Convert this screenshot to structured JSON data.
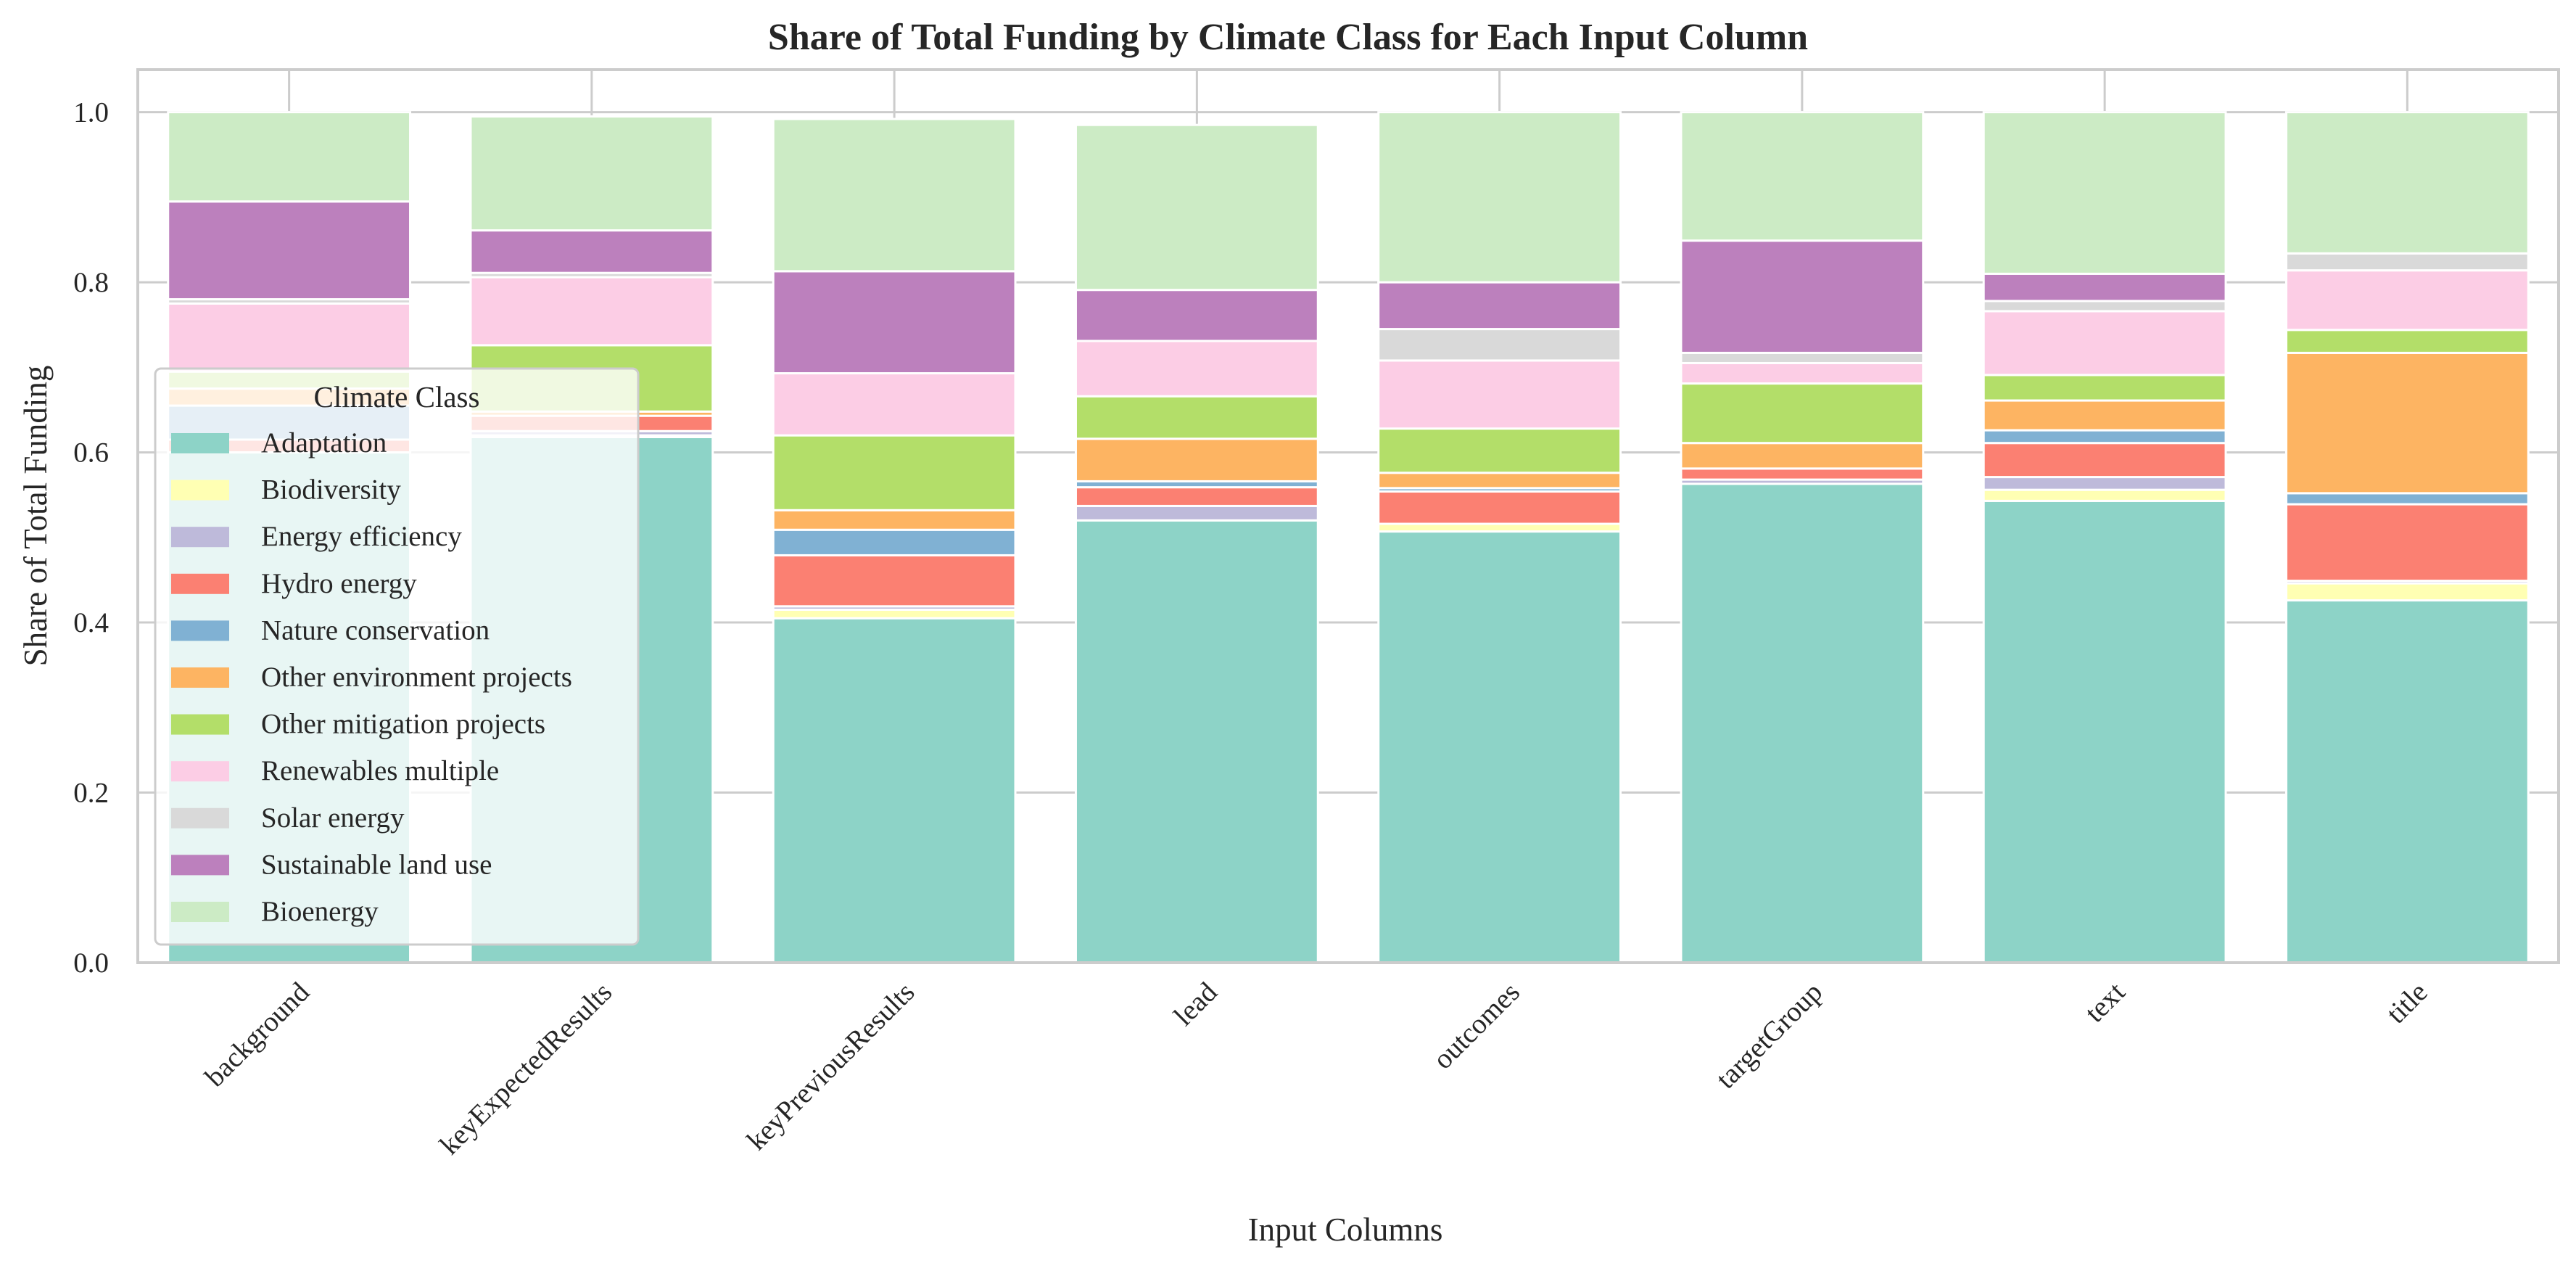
{
  "chart_data": {
    "type": "bar",
    "stacked": true,
    "title": "Share of Total Funding by Climate Class for Each Input Column",
    "xlabel": "Input Columns",
    "ylabel": "Share of Total Funding",
    "ylim": [
      0,
      1.05
    ],
    "yticks": [
      "0.0",
      "0.2",
      "0.4",
      "0.6",
      "0.8",
      "1.0"
    ],
    "ytick_values": [
      0,
      0.2,
      0.4,
      0.6,
      0.8,
      1.0
    ],
    "grid": true,
    "legend_title": "Climate Class",
    "legend_position": "center-left",
    "categories": [
      "background",
      "keyExpectedResults",
      "keyPreviousResults",
      "lead",
      "outcomes",
      "targetGroup",
      "text",
      "title"
    ],
    "series": [
      {
        "name": "Adaptation",
        "color": "#8dd3c7",
        "values": [
          0.6,
          0.618,
          0.405,
          0.52,
          0.507,
          0.563,
          0.543,
          0.426
        ]
      },
      {
        "name": "Biodiversity",
        "color": "#ffffb3",
        "values": [
          0.0,
          0.002,
          0.01,
          0.0,
          0.009,
          0.0,
          0.013,
          0.02
        ]
      },
      {
        "name": "Energy efficiency",
        "color": "#bebada",
        "values": [
          0.0,
          0.005,
          0.004,
          0.017,
          0.0,
          0.005,
          0.015,
          0.003
        ]
      },
      {
        "name": "Hydro energy",
        "color": "#fb8072",
        "values": [
          0.015,
          0.018,
          0.06,
          0.022,
          0.038,
          0.013,
          0.04,
          0.09
        ]
      },
      {
        "name": "Nature conservation",
        "color": "#80b1d3",
        "values": [
          0.04,
          0.0,
          0.03,
          0.007,
          0.004,
          0.0,
          0.015,
          0.013
        ]
      },
      {
        "name": "Other environment projects",
        "color": "#fdb462",
        "values": [
          0.02,
          0.005,
          0.023,
          0.05,
          0.018,
          0.03,
          0.035,
          0.165
        ]
      },
      {
        "name": "Other mitigation projects",
        "color": "#b3de69",
        "values": [
          0.02,
          0.078,
          0.088,
          0.05,
          0.052,
          0.07,
          0.03,
          0.027
        ]
      },
      {
        "name": "Renewables multiple",
        "color": "#fccde5",
        "values": [
          0.08,
          0.08,
          0.073,
          0.065,
          0.08,
          0.024,
          0.075,
          0.07
        ]
      },
      {
        "name": "Solar energy",
        "color": "#d9d9d9",
        "values": [
          0.005,
          0.005,
          0.0,
          0.0,
          0.037,
          0.012,
          0.012,
          0.02
        ]
      },
      {
        "name": "Sustainable land use",
        "color": "#bc80bd",
        "values": [
          0.115,
          0.05,
          0.12,
          0.06,
          0.055,
          0.132,
          0.032,
          0.0
        ]
      },
      {
        "name": "Bioenergy",
        "color": "#ccebc5",
        "values": [
          0.105,
          0.134,
          0.179,
          0.194,
          0.2,
          0.151,
          0.19,
          0.166
        ]
      }
    ]
  }
}
